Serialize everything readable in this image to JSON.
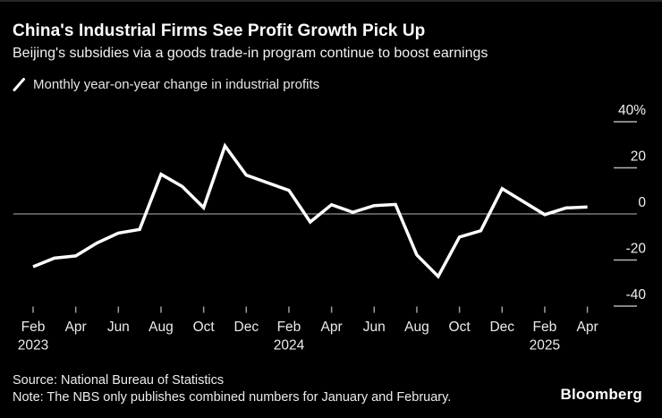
{
  "header": {
    "title": "China's Industrial Firms See Profit Growth Pick Up",
    "subtitle": "Beijing's subsidies via a goods trade-in program continue to boost earnings"
  },
  "legend": {
    "marker": "slash-line-marker",
    "label": "Monthly year-on-year change in industrial profits"
  },
  "footer": {
    "source": "Source: National Bureau of Statistics",
    "note": "Note: The NBS only publishes combined numbers for January and February.",
    "brand": "Bloomberg"
  },
  "colors": {
    "background": "#000000",
    "line": "#ffffff",
    "zero_line": "#b3b3b3",
    "y_tick": "#b3b3b3",
    "x_tick": "#9e9e9e",
    "axis_text": "#ececec",
    "title_text": "#ffffff"
  },
  "chart_data": {
    "type": "line",
    "title": "Monthly year-on-year change in industrial profits",
    "unit": "%",
    "ylim": [
      -40,
      40
    ],
    "grid": "zero-line-only",
    "legend_position": "top-left",
    "y_ticks": [
      {
        "value": 40,
        "label": "40%"
      },
      {
        "value": 20,
        "label": "20"
      },
      {
        "value": 0,
        "label": "0"
      },
      {
        "value": -20,
        "label": "-20"
      },
      {
        "value": -40,
        "label": "-40"
      }
    ],
    "x_ticks": [
      {
        "offset": 0,
        "month": "Feb",
        "year": "2023"
      },
      {
        "offset": 2,
        "month": "Apr",
        "year": ""
      },
      {
        "offset": 4,
        "month": "Jun",
        "year": ""
      },
      {
        "offset": 6,
        "month": "Aug",
        "year": ""
      },
      {
        "offset": 8,
        "month": "Oct",
        "year": ""
      },
      {
        "offset": 10,
        "month": "Dec",
        "year": ""
      },
      {
        "offset": 12,
        "month": "Feb",
        "year": "2024"
      },
      {
        "offset": 14,
        "month": "Apr",
        "year": ""
      },
      {
        "offset": 16,
        "month": "Jun",
        "year": ""
      },
      {
        "offset": 18,
        "month": "Aug",
        "year": ""
      },
      {
        "offset": 20,
        "month": "Oct",
        "year": ""
      },
      {
        "offset": 22,
        "month": "Dec",
        "year": ""
      },
      {
        "offset": 24,
        "month": "Feb",
        "year": "2025"
      },
      {
        "offset": 26,
        "month": "Apr",
        "year": ""
      }
    ],
    "series": [
      {
        "name": "Monthly year-on-year change in industrial profits",
        "color": "#ffffff",
        "points": [
          {
            "month": "Feb 2023",
            "offset": 0,
            "value": -22.9
          },
          {
            "month": "Mar 2023",
            "offset": 1,
            "value": -19.2
          },
          {
            "month": "Apr 2023",
            "offset": 2,
            "value": -18.2
          },
          {
            "month": "May 2023",
            "offset": 3,
            "value": -12.6
          },
          {
            "month": "Jun 2023",
            "offset": 4,
            "value": -8.3
          },
          {
            "month": "Jul 2023",
            "offset": 5,
            "value": -6.7
          },
          {
            "month": "Aug 2023",
            "offset": 6,
            "value": 17.2
          },
          {
            "month": "Sep 2023",
            "offset": 7,
            "value": 11.9
          },
          {
            "month": "Oct 2023",
            "offset": 8,
            "value": 2.7
          },
          {
            "month": "Nov 2023",
            "offset": 9,
            "value": 29.5
          },
          {
            "month": "Dec 2023",
            "offset": 10,
            "value": 16.8
          },
          {
            "month": "Feb 2024",
            "offset": 12,
            "value": 10.2
          },
          {
            "month": "Mar 2024",
            "offset": 13,
            "value": -3.5
          },
          {
            "month": "Apr 2024",
            "offset": 14,
            "value": 4.0
          },
          {
            "month": "May 2024",
            "offset": 15,
            "value": 0.7
          },
          {
            "month": "Jun 2024",
            "offset": 16,
            "value": 3.6
          },
          {
            "month": "Jul 2024",
            "offset": 17,
            "value": 4.1
          },
          {
            "month": "Aug 2024",
            "offset": 18,
            "value": -17.8
          },
          {
            "month": "Sep 2024",
            "offset": 19,
            "value": -27.1
          },
          {
            "month": "Oct 2024",
            "offset": 20,
            "value": -10.0
          },
          {
            "month": "Nov 2024",
            "offset": 21,
            "value": -7.3
          },
          {
            "month": "Dec 2024",
            "offset": 22,
            "value": 11.0
          },
          {
            "month": "Feb 2025",
            "offset": 24,
            "value": -0.3
          },
          {
            "month": "Mar 2025",
            "offset": 25,
            "value": 2.6
          },
          {
            "month": "Apr 2025",
            "offset": 26,
            "value": 3.0
          }
        ]
      }
    ]
  }
}
